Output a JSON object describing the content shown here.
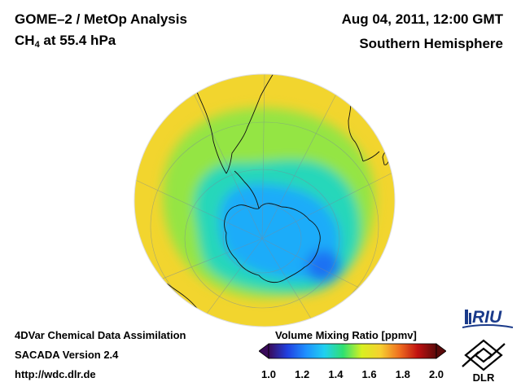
{
  "header": {
    "title_line1": "GOME–2 / MetOp Analysis",
    "title_line2_main": "CH",
    "title_line2_sub": "4",
    "title_line2_rest": " at 55.4 hPa",
    "datetime": "Aug 04, 2011, 12:00 GMT",
    "region": "Southern Hemisphere"
  },
  "footer": {
    "line1": "4DVar Chemical Data Assimilation",
    "line2": "SACADA Version 2.4",
    "line3": "http://wdc.dlr.de"
  },
  "colorbar": {
    "title": "Volume Mixing Ratio [ppmv]",
    "min": 1.0,
    "max": 2.0,
    "ticks": [
      "1.0",
      "1.2",
      "1.4",
      "1.6",
      "1.8",
      "2.0"
    ],
    "colors": [
      "#3a0a5a",
      "#2040e0",
      "#1e90ff",
      "#20d0f0",
      "#30e070",
      "#d8f020",
      "#f6d030",
      "#f07020",
      "#c01010",
      "#5a0a0a"
    ]
  },
  "map_values": {
    "outer_ppmv": 1.65,
    "mid_ppmv": 1.5,
    "vortex_edge_ppmv": 1.38,
    "vortex_core_ppmv": 1.27,
    "vortex_min_ppmv": 1.18
  },
  "logos": {
    "riu_text": "RIU",
    "dlr_text": "DLR"
  }
}
